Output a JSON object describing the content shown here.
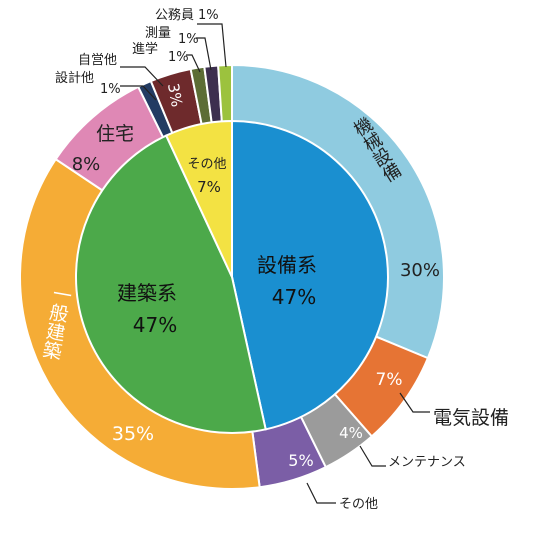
{
  "chart_data": {
    "type": "pie",
    "title": "",
    "inner": {
      "slices": [
        {
          "label": "設備系",
          "value": 47,
          "value_label": "47%",
          "color": "#1a8fd0"
        },
        {
          "label": "建築系",
          "value": 47,
          "value_label": "47%",
          "color": "#4ca94a"
        },
        {
          "label": "その他",
          "value": 7,
          "value_label": "7%",
          "color": "#f3e243"
        }
      ]
    },
    "outer": {
      "slices": [
        {
          "label": "機械設備",
          "value": 30,
          "value_label": "30%",
          "color": "#8fcbe0"
        },
        {
          "label": "電気設備",
          "value": 7,
          "value_label": "7%",
          "color": "#e67434"
        },
        {
          "label": "メンテナンス",
          "value": 4,
          "value_label": "4%",
          "color": "#9b9b9b"
        },
        {
          "label": "その他",
          "value": 5,
          "value_label": "5%",
          "color": "#7b5ea6"
        },
        {
          "label": "一般建築",
          "value": 35,
          "value_label": "35%",
          "color": "#f5ac36"
        },
        {
          "label": "住宅",
          "value": 8,
          "value_label": "8%",
          "color": "#df88b5"
        },
        {
          "label": "設計他",
          "value": 1,
          "value_label": "1%",
          "color": "#233c63"
        },
        {
          "label": "自営他",
          "value": 3,
          "value_label": "3%",
          "color": "#6e2a2c"
        },
        {
          "label": "進学",
          "value": 1,
          "value_label": "1%",
          "color": "#5c6d35"
        },
        {
          "label": "測量",
          "value": 1,
          "value_label": "1%",
          "color": "#3d2f4f"
        },
        {
          "label": "公務員",
          "value": 1,
          "value_label": "1%",
          "color": "#9cc23e"
        }
      ]
    },
    "legend": "none"
  }
}
